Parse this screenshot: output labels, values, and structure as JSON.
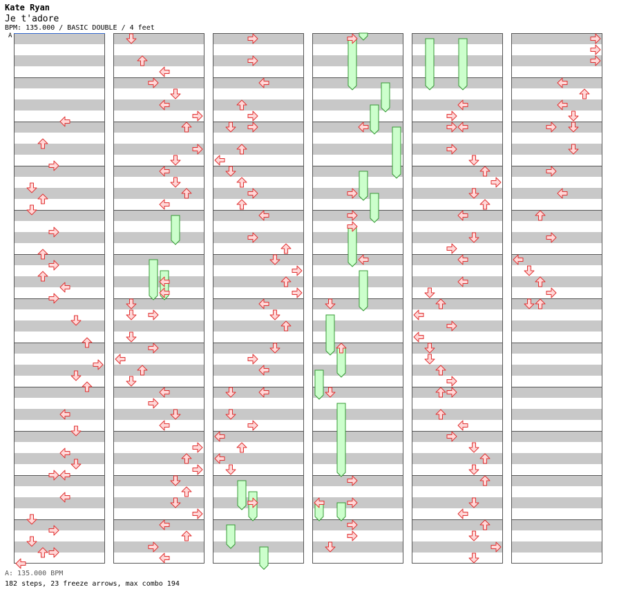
{
  "header": {
    "artist": "Kate Ryan",
    "title": "Je t'adore",
    "info": "BPM: 135.000 / BASIC DOUBLE / 4 feet"
  },
  "bpm_marker": "A",
  "footer": {
    "bpm_line": "A: 135.000 BPM",
    "summary": "182 steps, 23 freeze arrows, max combo 194"
  },
  "colors": {
    "stripe": "#c8c8c8",
    "border": "#555555",
    "arrow_fill": "#ffd8d8",
    "arrow_stroke": "#e03030",
    "freeze_fill": "#ccffcc",
    "freeze_stroke": "#339933",
    "bpm_line": "#3366cc"
  },
  "chart_data": {
    "type": "step-chart",
    "columns_count": 6,
    "measures_per_column": 12,
    "lanes": [
      "P1-left",
      "P1-down",
      "P1-up",
      "P1-right",
      "P2-left",
      "P2-down",
      "P2-up",
      "P2-right"
    ],
    "notes": [
      {
        "col": 0,
        "m": 2,
        "lane": 4
      },
      {
        "col": 0,
        "m": 2.5,
        "lane": 2
      },
      {
        "col": 0,
        "m": 3,
        "lane": 3
      },
      {
        "col": 0,
        "m": 3.5,
        "lane": 1
      },
      {
        "col": 0,
        "m": 3.75,
        "lane": 2
      },
      {
        "col": 0,
        "m": 4,
        "lane": 1
      },
      {
        "col": 0,
        "m": 4.5,
        "lane": 3
      },
      {
        "col": 0,
        "m": 5,
        "lane": 2
      },
      {
        "col": 0,
        "m": 5.25,
        "lane": 3
      },
      {
        "col": 0,
        "m": 5.5,
        "lane": 2
      },
      {
        "col": 0,
        "m": 5.75,
        "lane": 4
      },
      {
        "col": 0,
        "m": 6,
        "lane": 3
      },
      {
        "col": 0,
        "m": 6.5,
        "lane": 5
      },
      {
        "col": 0,
        "m": 7,
        "lane": 6
      },
      {
        "col": 0,
        "m": 7.5,
        "lane": 7
      },
      {
        "col": 0,
        "m": 7.75,
        "lane": 5
      },
      {
        "col": 0,
        "m": 8,
        "lane": 6
      },
      {
        "col": 0,
        "m": 8.625,
        "lane": 4
      },
      {
        "col": 0,
        "m": 9,
        "lane": 5
      },
      {
        "col": 0,
        "m": 9.5,
        "lane": 4
      },
      {
        "col": 0,
        "m": 9.75,
        "lane": 5
      },
      {
        "col": 0,
        "m": 10,
        "lane": 3
      },
      {
        "col": 0,
        "m": 10,
        "lane": 4
      },
      {
        "col": 0,
        "m": 10.5,
        "lane": 4
      },
      {
        "col": 0,
        "m": 11,
        "lane": 1
      },
      {
        "col": 0,
        "m": 11.25,
        "lane": 3
      },
      {
        "col": 0,
        "m": 11.5,
        "lane": 1
      },
      {
        "col": 0,
        "m": 11.75,
        "lane": 2
      },
      {
        "col": 0,
        "m": 11.75,
        "lane": 3
      },
      {
        "col": 0,
        "m": 12,
        "lane": 0
      },
      {
        "col": 1,
        "m": 0.125,
        "lane": 1
      },
      {
        "col": 1,
        "m": 0.625,
        "lane": 2
      },
      {
        "col": 1,
        "m": 0.875,
        "lane": 4
      },
      {
        "col": 1,
        "m": 1.125,
        "lane": 3
      },
      {
        "col": 1,
        "m": 1.375,
        "lane": 5
      },
      {
        "col": 1,
        "m": 1.625,
        "lane": 4
      },
      {
        "col": 1,
        "m": 1.875,
        "lane": 7
      },
      {
        "col": 1,
        "m": 2.125,
        "lane": 6
      },
      {
        "col": 1,
        "m": 2.625,
        "lane": 7
      },
      {
        "col": 1,
        "m": 2.875,
        "lane": 5
      },
      {
        "col": 1,
        "m": 3.125,
        "lane": 4
      },
      {
        "col": 1,
        "m": 3.375,
        "lane": 5
      },
      {
        "col": 1,
        "m": 3.625,
        "lane": 6
      },
      {
        "col": 1,
        "m": 3.875,
        "lane": 4
      },
      {
        "col": 1,
        "m": 5.625,
        "lane": 4
      },
      {
        "col": 1,
        "m": 5.875,
        "lane": 4
      },
      {
        "col": 1,
        "m": 6.125,
        "lane": 1
      },
      {
        "col": 1,
        "m": 6.375,
        "lane": 1
      },
      {
        "col": 1,
        "m": 6.375,
        "lane": 3
      },
      {
        "col": 1,
        "m": 6.875,
        "lane": 1
      },
      {
        "col": 1,
        "m": 7.125,
        "lane": 3
      },
      {
        "col": 1,
        "m": 7.375,
        "lane": 0
      },
      {
        "col": 1,
        "m": 7.625,
        "lane": 2
      },
      {
        "col": 1,
        "m": 7.875,
        "lane": 1
      },
      {
        "col": 1,
        "m": 8.125,
        "lane": 4
      },
      {
        "col": 1,
        "m": 8.375,
        "lane": 3
      },
      {
        "col": 1,
        "m": 8.625,
        "lane": 5
      },
      {
        "col": 1,
        "m": 8.875,
        "lane": 4
      },
      {
        "col": 1,
        "m": 9.375,
        "lane": 7
      },
      {
        "col": 1,
        "m": 9.625,
        "lane": 6
      },
      {
        "col": 1,
        "m": 9.875,
        "lane": 7
      },
      {
        "col": 1,
        "m": 10.125,
        "lane": 5
      },
      {
        "col": 1,
        "m": 10.375,
        "lane": 6
      },
      {
        "col": 1,
        "m": 10.625,
        "lane": 5
      },
      {
        "col": 1,
        "m": 10.875,
        "lane": 7
      },
      {
        "col": 1,
        "m": 11.125,
        "lane": 4
      },
      {
        "col": 1,
        "m": 11.375,
        "lane": 6
      },
      {
        "col": 1,
        "m": 11.625,
        "lane": 3
      },
      {
        "col": 1,
        "m": 11.875,
        "lane": 4
      },
      {
        "col": 2,
        "m": 0.125,
        "lane": 3
      },
      {
        "col": 2,
        "m": 0.625,
        "lane": 3
      },
      {
        "col": 2,
        "m": 1.125,
        "lane": 4
      },
      {
        "col": 2,
        "m": 1.625,
        "lane": 2
      },
      {
        "col": 2,
        "m": 1.875,
        "lane": 3
      },
      {
        "col": 2,
        "m": 2.125,
        "lane": 1
      },
      {
        "col": 2,
        "m": 2.125,
        "lane": 3
      },
      {
        "col": 2,
        "m": 2.625,
        "lane": 2
      },
      {
        "col": 2,
        "m": 2.875,
        "lane": 0
      },
      {
        "col": 2,
        "m": 3.125,
        "lane": 1
      },
      {
        "col": 2,
        "m": 3.375,
        "lane": 2
      },
      {
        "col": 2,
        "m": 3.625,
        "lane": 3
      },
      {
        "col": 2,
        "m": 3.875,
        "lane": 2
      },
      {
        "col": 2,
        "m": 4.125,
        "lane": 4
      },
      {
        "col": 2,
        "m": 4.625,
        "lane": 3
      },
      {
        "col": 2,
        "m": 4.875,
        "lane": 6
      },
      {
        "col": 2,
        "m": 5.125,
        "lane": 5
      },
      {
        "col": 2,
        "m": 5.375,
        "lane": 7
      },
      {
        "col": 2,
        "m": 5.625,
        "lane": 6
      },
      {
        "col": 2,
        "m": 5.875,
        "lane": 7
      },
      {
        "col": 2,
        "m": 6.125,
        "lane": 4
      },
      {
        "col": 2,
        "m": 6.375,
        "lane": 5
      },
      {
        "col": 2,
        "m": 6.625,
        "lane": 6
      },
      {
        "col": 2,
        "m": 7.125,
        "lane": 5
      },
      {
        "col": 2,
        "m": 7.375,
        "lane": 3
      },
      {
        "col": 2,
        "m": 7.625,
        "lane": 4
      },
      {
        "col": 2,
        "m": 8.125,
        "lane": 1
      },
      {
        "col": 2,
        "m": 8.125,
        "lane": 4
      },
      {
        "col": 2,
        "m": 8.625,
        "lane": 1
      },
      {
        "col": 2,
        "m": 8.875,
        "lane": 3
      },
      {
        "col": 2,
        "m": 9.125,
        "lane": 0
      },
      {
        "col": 2,
        "m": 9.375,
        "lane": 2
      },
      {
        "col": 2,
        "m": 9.625,
        "lane": 0
      },
      {
        "col": 2,
        "m": 9.875,
        "lane": 1
      },
      {
        "col": 2,
        "m": 10.625,
        "lane": 3
      },
      {
        "col": 3,
        "m": 0.125,
        "lane": 3
      },
      {
        "col": 3,
        "m": 2.125,
        "lane": 4
      },
      {
        "col": 3,
        "m": 3.625,
        "lane": 3
      },
      {
        "col": 3,
        "m": 4.125,
        "lane": 3
      },
      {
        "col": 3,
        "m": 4.375,
        "lane": 3
      },
      {
        "col": 3,
        "m": 5.125,
        "lane": 4
      },
      {
        "col": 3,
        "m": 6.125,
        "lane": 1
      },
      {
        "col": 3,
        "m": 7.125,
        "lane": 2
      },
      {
        "col": 3,
        "m": 8.125,
        "lane": 1
      },
      {
        "col": 3,
        "m": 10.125,
        "lane": 3
      },
      {
        "col": 3,
        "m": 10.625,
        "lane": 0
      },
      {
        "col": 3,
        "m": 10.625,
        "lane": 3
      },
      {
        "col": 3,
        "m": 11.125,
        "lane": 3
      },
      {
        "col": 3,
        "m": 11.375,
        "lane": 3
      },
      {
        "col": 3,
        "m": 11.625,
        "lane": 1
      },
      {
        "col": 4,
        "m": 1.625,
        "lane": 4
      },
      {
        "col": 4,
        "m": 1.875,
        "lane": 3
      },
      {
        "col": 4,
        "m": 2.125,
        "lane": 3
      },
      {
        "col": 4,
        "m": 2.125,
        "lane": 4
      },
      {
        "col": 4,
        "m": 2.625,
        "lane": 3
      },
      {
        "col": 4,
        "m": 2.875,
        "lane": 5
      },
      {
        "col": 4,
        "m": 3.125,
        "lane": 6
      },
      {
        "col": 4,
        "m": 3.375,
        "lane": 7
      },
      {
        "col": 4,
        "m": 3.625,
        "lane": 5
      },
      {
        "col": 4,
        "m": 3.875,
        "lane": 6
      },
      {
        "col": 4,
        "m": 4.125,
        "lane": 4
      },
      {
        "col": 4,
        "m": 4.625,
        "lane": 5
      },
      {
        "col": 4,
        "m": 4.875,
        "lane": 3
      },
      {
        "col": 4,
        "m": 5.125,
        "lane": 4
      },
      {
        "col": 4,
        "m": 5.625,
        "lane": 4
      },
      {
        "col": 4,
        "m": 5.875,
        "lane": 1
      },
      {
        "col": 4,
        "m": 6.125,
        "lane": 2
      },
      {
        "col": 4,
        "m": 6.375,
        "lane": 0
      },
      {
        "col": 4,
        "m": 6.625,
        "lane": 3
      },
      {
        "col": 4,
        "m": 6.875,
        "lane": 0
      },
      {
        "col": 4,
        "m": 7.125,
        "lane": 1
      },
      {
        "col": 4,
        "m": 7.375,
        "lane": 1
      },
      {
        "col": 4,
        "m": 7.625,
        "lane": 2
      },
      {
        "col": 4,
        "m": 7.875,
        "lane": 3
      },
      {
        "col": 4,
        "m": 8.125,
        "lane": 2
      },
      {
        "col": 4,
        "m": 8.125,
        "lane": 3
      },
      {
        "col": 4,
        "m": 8.625,
        "lane": 2
      },
      {
        "col": 4,
        "m": 8.875,
        "lane": 4
      },
      {
        "col": 4,
        "m": 9.125,
        "lane": 3
      },
      {
        "col": 4,
        "m": 9.375,
        "lane": 5
      },
      {
        "col": 4,
        "m": 9.625,
        "lane": 6
      },
      {
        "col": 4,
        "m": 9.875,
        "lane": 5
      },
      {
        "col": 4,
        "m": 10.125,
        "lane": 6
      },
      {
        "col": 4,
        "m": 10.625,
        "lane": 5
      },
      {
        "col": 4,
        "m": 10.875,
        "lane": 4
      },
      {
        "col": 4,
        "m": 11.125,
        "lane": 6
      },
      {
        "col": 4,
        "m": 11.375,
        "lane": 5
      },
      {
        "col": 4,
        "m": 11.625,
        "lane": 7
      },
      {
        "col": 4,
        "m": 11.875,
        "lane": 5
      },
      {
        "col": 5,
        "m": 0.125,
        "lane": 7
      },
      {
        "col": 5,
        "m": 0.375,
        "lane": 7
      },
      {
        "col": 5,
        "m": 0.625,
        "lane": 7
      },
      {
        "col": 5,
        "m": 1.125,
        "lane": 4
      },
      {
        "col": 5,
        "m": 1.375,
        "lane": 6
      },
      {
        "col": 5,
        "m": 1.625,
        "lane": 4
      },
      {
        "col": 5,
        "m": 1.875,
        "lane": 5
      },
      {
        "col": 5,
        "m": 2.125,
        "lane": 3
      },
      {
        "col": 5,
        "m": 2.125,
        "lane": 5
      },
      {
        "col": 5,
        "m": 2.625,
        "lane": 5
      },
      {
        "col": 5,
        "m": 3.125,
        "lane": 3
      },
      {
        "col": 5,
        "m": 3.625,
        "lane": 4
      },
      {
        "col": 5,
        "m": 4.125,
        "lane": 2
      },
      {
        "col": 5,
        "m": 4.625,
        "lane": 3
      },
      {
        "col": 5,
        "m": 5.125,
        "lane": 0
      },
      {
        "col": 5,
        "m": 5.375,
        "lane": 1
      },
      {
        "col": 5,
        "m": 5.625,
        "lane": 2
      },
      {
        "col": 5,
        "m": 5.875,
        "lane": 3
      },
      {
        "col": 5,
        "m": 6.125,
        "lane": 1
      },
      {
        "col": 5,
        "m": 6.125,
        "lane": 2
      }
    ],
    "freezes": [
      {
        "col": 1,
        "lane": 5,
        "start": 4.125,
        "end": 4.75
      },
      {
        "col": 1,
        "lane": 3,
        "start": 5.125,
        "end": 6.0
      },
      {
        "col": 1,
        "lane": 4,
        "start": 5.375,
        "end": 6.0
      },
      {
        "col": 2,
        "lane": 2,
        "start": 10.125,
        "end": 10.75
      },
      {
        "col": 2,
        "lane": 3,
        "start": 10.375,
        "end": 11.0
      },
      {
        "col": 2,
        "lane": 1,
        "start": 11.125,
        "end": 11.625
      },
      {
        "col": 2,
        "lane": 4,
        "start": 11.625,
        "end": 12.1
      },
      {
        "col": 3,
        "lane": 4,
        "start": 0,
        "end": 0.125
      },
      {
        "col": 3,
        "lane": 3,
        "start": 0.125,
        "end": 1.25
      },
      {
        "col": 3,
        "lane": 6,
        "start": 1.125,
        "end": 1.75
      },
      {
        "col": 3,
        "lane": 5,
        "start": 1.625,
        "end": 2.25
      },
      {
        "col": 3,
        "lane": 7,
        "start": 2.125,
        "end": 3.25
      },
      {
        "col": 3,
        "lane": 4,
        "start": 3.125,
        "end": 3.75
      },
      {
        "col": 3,
        "lane": 5,
        "start": 3.625,
        "end": 4.25
      },
      {
        "col": 3,
        "lane": 3,
        "start": 4.375,
        "end": 5.25
      },
      {
        "col": 3,
        "lane": 4,
        "start": 5.375,
        "end": 6.25
      },
      {
        "col": 3,
        "lane": 1,
        "start": 6.375,
        "end": 7.25
      },
      {
        "col": 3,
        "lane": 2,
        "start": 7.125,
        "end": 7.75
      },
      {
        "col": 3,
        "lane": 0,
        "start": 7.625,
        "end": 8.25
      },
      {
        "col": 3,
        "lane": 2,
        "start": 8.375,
        "end": 10.0
      },
      {
        "col": 3,
        "lane": 0,
        "start": 10.625,
        "end": 11.0
      },
      {
        "col": 3,
        "lane": 2,
        "start": 10.625,
        "end": 11.0
      },
      {
        "col": 4,
        "lane": 1,
        "start": 0.125,
        "end": 1.25
      },
      {
        "col": 4,
        "lane": 4,
        "start": 0.125,
        "end": 1.25
      }
    ]
  }
}
